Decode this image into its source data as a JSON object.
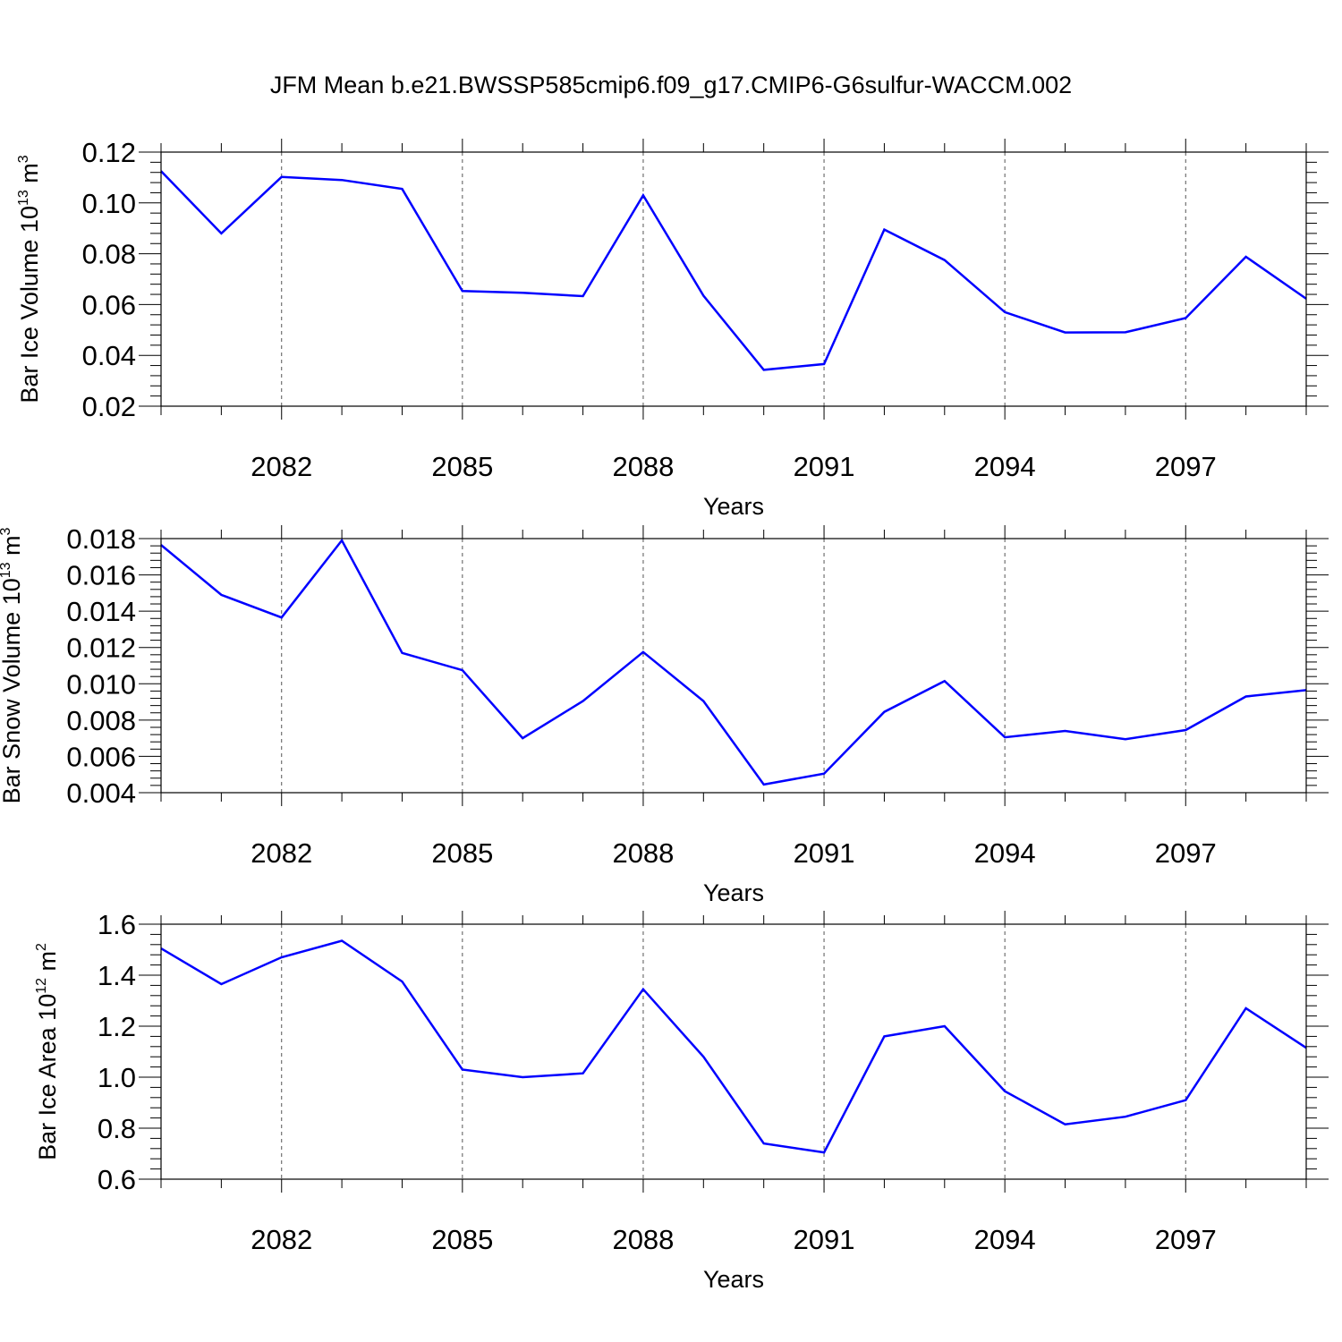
{
  "title": "JFM Mean b.e21.BWSSP585cmip6.f09_g17.CMIP6-G6sulfur-WACCM.002",
  "chart_data": [
    {
      "type": "line",
      "xlabel": "Years",
      "ylabel": {
        "text": "Bar Ice Volume 10",
        "exp": "13",
        "unit": "m",
        "unit_exp": "3"
      },
      "xlim": [
        2080,
        2099
      ],
      "ylim": [
        0.02,
        0.12
      ],
      "xticks": [
        2082,
        2085,
        2088,
        2091,
        2094,
        2097
      ],
      "xtick_labels": [
        "2082",
        "2085",
        "2088",
        "2091",
        "2094",
        "2097"
      ],
      "yticks": [
        0.02,
        0.04,
        0.06,
        0.08,
        0.1,
        0.12
      ],
      "ytick_labels": [
        "0.02",
        "0.04",
        "0.06",
        "0.08",
        "0.10",
        "0.12"
      ],
      "grid": "vertical dashed at major x ticks",
      "color": "#0000ff",
      "x": [
        2080,
        2081,
        2082,
        2083,
        2084,
        2085,
        2086,
        2087,
        2088,
        2089,
        2090,
        2091,
        2092,
        2093,
        2094,
        2095,
        2096,
        2097,
        2098,
        2099
      ],
      "y": [
        0.1125,
        0.088,
        0.1102,
        0.109,
        0.1055,
        0.0653,
        0.0646,
        0.0633,
        0.103,
        0.0635,
        0.0343,
        0.0366,
        0.0895,
        0.0775,
        0.057,
        0.049,
        0.0491,
        0.0547,
        0.0788,
        0.0623
      ]
    },
    {
      "type": "line",
      "xlabel": "Years",
      "ylabel": {
        "text": "Bar Snow Volume 10",
        "exp": "13",
        "unit": "m",
        "unit_exp": "3"
      },
      "xlim": [
        2080,
        2099
      ],
      "ylim": [
        0.004,
        0.018
      ],
      "xticks": [
        2082,
        2085,
        2088,
        2091,
        2094,
        2097
      ],
      "xtick_labels": [
        "2082",
        "2085",
        "2088",
        "2091",
        "2094",
        "2097"
      ],
      "yticks": [
        0.004,
        0.006,
        0.008,
        0.01,
        0.012,
        0.014,
        0.016,
        0.018
      ],
      "ytick_labels": [
        "0.004",
        "0.006",
        "0.008",
        "0.010",
        "0.012",
        "0.014",
        "0.016",
        "0.018"
      ],
      "grid": "vertical dashed at major x ticks",
      "color": "#0000ff",
      "x": [
        2080,
        2081,
        2082,
        2083,
        2084,
        2085,
        2086,
        2087,
        2088,
        2089,
        2090,
        2091,
        2092,
        2093,
        2094,
        2095,
        2096,
        2097,
        2098,
        2099
      ],
      "y": [
        0.01765,
        0.0149,
        0.01365,
        0.0179,
        0.0117,
        0.01075,
        0.007,
        0.00905,
        0.01175,
        0.00905,
        0.00445,
        0.00505,
        0.00845,
        0.01015,
        0.00705,
        0.0074,
        0.00695,
        0.00745,
        0.0093,
        0.00965
      ]
    },
    {
      "type": "line",
      "xlabel": "Years",
      "ylabel": {
        "text": "Bar Ice Area 10",
        "exp": "12",
        "unit": "m",
        "unit_exp": "2"
      },
      "xlim": [
        2080,
        2099
      ],
      "ylim": [
        0.6,
        1.6
      ],
      "xticks": [
        2082,
        2085,
        2088,
        2091,
        2094,
        2097
      ],
      "xtick_labels": [
        "2082",
        "2085",
        "2088",
        "2091",
        "2094",
        "2097"
      ],
      "yticks": [
        0.6,
        0.8,
        1.0,
        1.2,
        1.4,
        1.6
      ],
      "ytick_labels": [
        "0.6",
        "0.8",
        "1.0",
        "1.2",
        "1.4",
        "1.6"
      ],
      "grid": "vertical dashed at major x ticks",
      "color": "#0000ff",
      "x": [
        2080,
        2081,
        2082,
        2083,
        2084,
        2085,
        2086,
        2087,
        2088,
        2089,
        2090,
        2091,
        2092,
        2093,
        2094,
        2095,
        2096,
        2097,
        2098,
        2099
      ],
      "y": [
        1.505,
        1.365,
        1.47,
        1.535,
        1.375,
        1.03,
        1.0,
        1.015,
        1.345,
        1.08,
        0.74,
        0.705,
        1.16,
        1.2,
        0.945,
        0.815,
        0.845,
        0.91,
        1.27,
        1.115
      ]
    }
  ]
}
